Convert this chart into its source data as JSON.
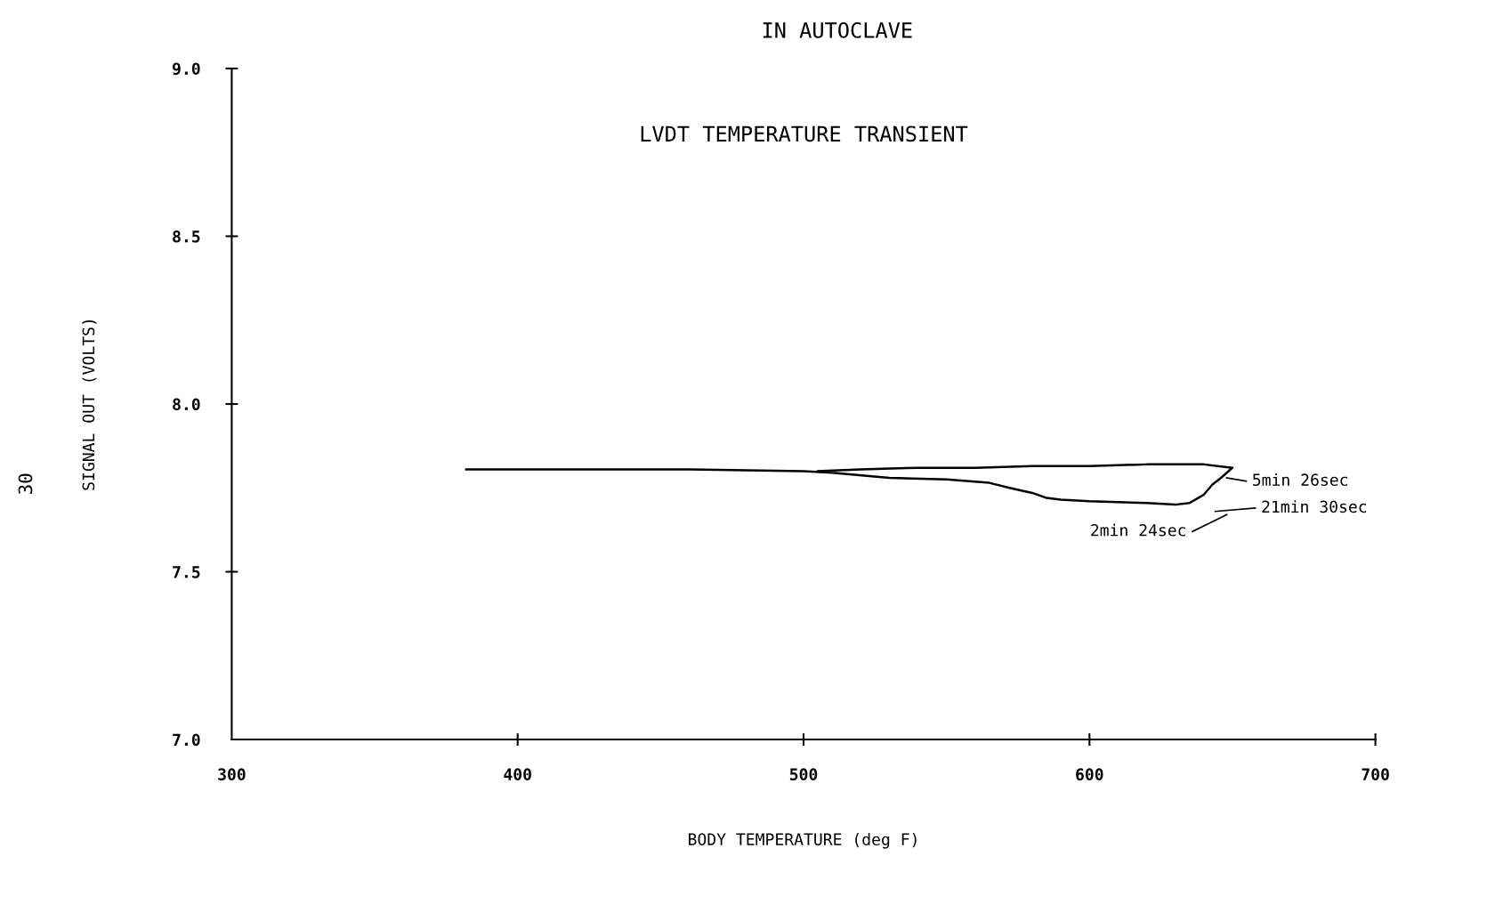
{
  "chart_data": {
    "type": "line",
    "title": "IN AUTOCLAVE",
    "subtitle": "LVDT TEMPERATURE TRANSIENT",
    "xlabel": "BODY TEMPERATURE (deg F)",
    "ylabel": "SIGNAL OUT (VOLTS)",
    "x": [
      382,
      420,
      460,
      500,
      510,
      530,
      550,
      565,
      572,
      580,
      585,
      590,
      600,
      620,
      630,
      635,
      640,
      643,
      646,
      650,
      640,
      620,
      600,
      580,
      560,
      540,
      520,
      505
    ],
    "series": [
      {
        "color": "#000000",
        "values": [
          7.805,
          7.805,
          7.805,
          7.8,
          7.795,
          7.78,
          7.775,
          7.765,
          7.75,
          7.735,
          7.72,
          7.715,
          7.71,
          7.705,
          7.7,
          7.705,
          7.73,
          7.76,
          7.78,
          7.81,
          7.82,
          7.82,
          7.815,
          7.815,
          7.81,
          7.81,
          7.805,
          7.8
        ]
      }
    ],
    "xlim": [
      300,
      700
    ],
    "xticks": [
      300,
      400,
      500,
      600,
      700
    ],
    "ylim": [
      7.0,
      9.0
    ],
    "yticks": [
      {
        "value": 7,
        "label": "7.0"
      },
      7.5,
      {
        "value": 8,
        "label": "8.0"
      },
      8.5,
      {
        "value": 9,
        "label": "9.0"
      }
    ],
    "grid": false,
    "legend": false,
    "marker": "none",
    "line_style": "solid",
    "annotations": [
      "5min 26sec",
      "21min 30sec",
      "2min 24sec",
      "30"
    ]
  }
}
